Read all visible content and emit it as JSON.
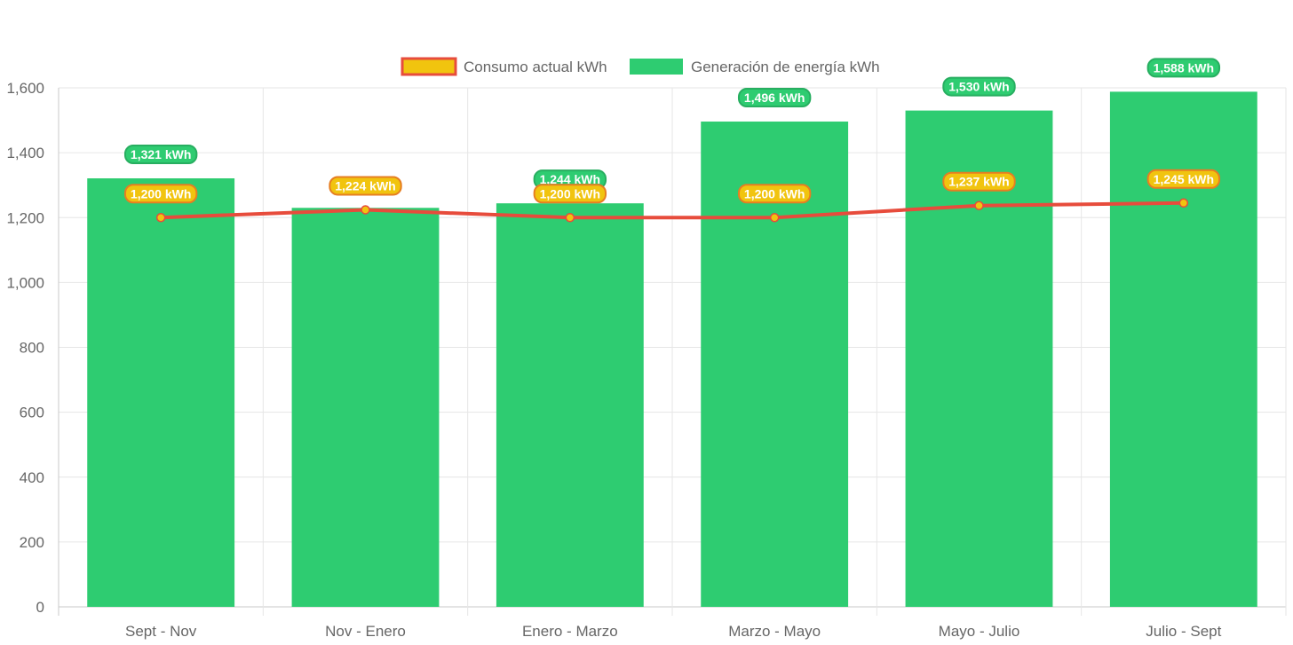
{
  "chart_data": {
    "type": "bar",
    "title": "",
    "xlabel": "",
    "ylabel": "",
    "ylim": [
      0,
      1600
    ],
    "yticks": [
      0,
      200,
      400,
      600,
      800,
      1000,
      1200,
      1400,
      1600
    ],
    "ytick_labels": [
      "0",
      "200",
      "400",
      "600",
      "800",
      "1,000",
      "1,200",
      "1,400",
      "1,600"
    ],
    "categories": [
      "Sept - Nov",
      "Nov - Enero",
      "Enero - Marzo",
      "Marzo - Mayo",
      "Mayo - Julio",
      "Julio - Sept"
    ],
    "grid": true,
    "legend_position": "top",
    "series": [
      {
        "name": "Consumo actual kWh",
        "kind": "line",
        "color": "#e74c3c",
        "marker_color": "#f1c40f",
        "values": [
          1200,
          1224,
          1200,
          1200,
          1237,
          1245
        ],
        "data_labels": [
          "1,200 kWh",
          "1,224 kWh",
          "1,200 kWh",
          "1,200 kWh",
          "1,237 kWh",
          "1,245 kWh"
        ]
      },
      {
        "name": "Generación de energía kWh",
        "kind": "bar",
        "color": "#2ecc71",
        "values": [
          1321,
          1230,
          1244,
          1496,
          1530,
          1588
        ],
        "data_labels": [
          "1,321 kWh",
          "",
          "1,244 kWh",
          "1,496 kWh",
          "1,530 kWh",
          "1,588 kWh"
        ]
      }
    ]
  }
}
